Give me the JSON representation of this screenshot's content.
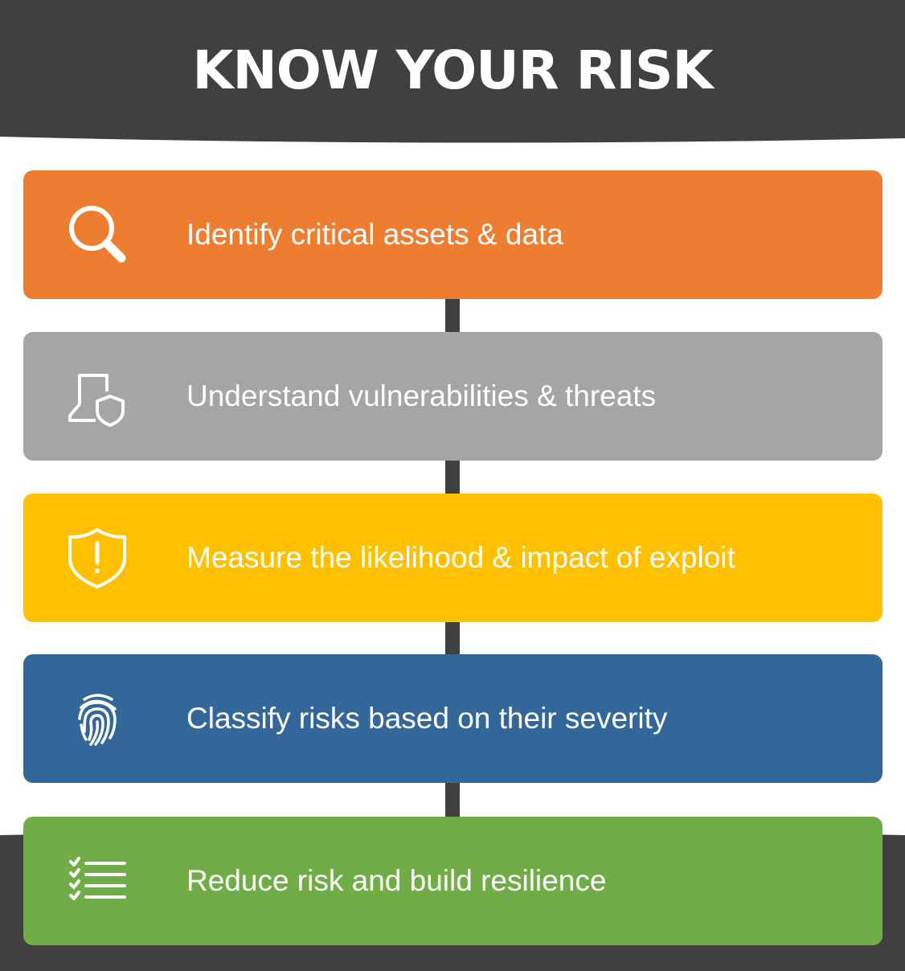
{
  "title": "KNOW YOUR RISK",
  "colors": {
    "band": "#404040",
    "step1": "#ED7D31",
    "step2": "#A5A5A5",
    "step3": "#FFC000",
    "step4": "#336699",
    "step5": "#70AD47"
  },
  "steps": [
    {
      "label": "Identify critical assets & data",
      "icon": "magnifier-icon"
    },
    {
      "label": "Understand vulnerabilities & threats",
      "icon": "laptop-shield-icon"
    },
    {
      "label": "Measure the likelihood & impact of exploit",
      "icon": "shield-alert-icon"
    },
    {
      "label": "Classify risks based on their severity",
      "icon": "fingerprint-icon"
    },
    {
      "label": "Reduce risk and build resilience",
      "icon": "checklist-icon"
    }
  ]
}
